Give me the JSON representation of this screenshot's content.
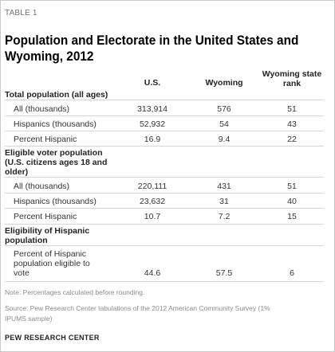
{
  "eyebrow": "TABLE 1",
  "title_line1": "Population and Electorate in the United States and",
  "title_line2": "Wyoming, 2012",
  "columns": {
    "us": "U.S.",
    "wyoming": "Wyoming",
    "rank_line1": "Wyoming state",
    "rank_line2": "rank"
  },
  "sections": [
    {
      "heading": "Total population (all ages)",
      "rows": [
        {
          "label": "All (thousands)",
          "us": "313,914",
          "wy": "576",
          "rank": "51"
        },
        {
          "label": "Hispanics (thousands)",
          "us": "52,932",
          "wy": "54",
          "rank": "43"
        },
        {
          "label": "Percent Hispanic",
          "us": "16.9",
          "wy": "9.4",
          "rank": "22"
        }
      ]
    },
    {
      "heading_line1": "Eligible voter population",
      "heading_line2": "(U.S. citizens ages 18 and",
      "heading_line3": "older)",
      "rows": [
        {
          "label": "All (thousands)",
          "us": "220,111",
          "wy": "431",
          "rank": "51"
        },
        {
          "label": "Hispanics (thousands)",
          "us": "23,632",
          "wy": "31",
          "rank": "40"
        },
        {
          "label": "Percent Hispanic",
          "us": "10.7",
          "wy": "7.2",
          "rank": "15"
        }
      ]
    },
    {
      "heading_line1": "Eligibility of Hispanic",
      "heading_line2": "population",
      "rows": [
        {
          "label_line1": "Percent of Hispanic",
          "label_line2": "population eligible to",
          "label_line3": "vote",
          "us": "44.6",
          "wy": "57.5",
          "rank": "6"
        }
      ]
    }
  ],
  "note": "Note: Percentages calculated before rounding.",
  "source_line1": "Source: Pew Research Center tabulations of the 2012 American Community Survey (1%",
  "source_line2": "IPUMS sample)",
  "org": "PEW RESEARCH CENTER"
}
